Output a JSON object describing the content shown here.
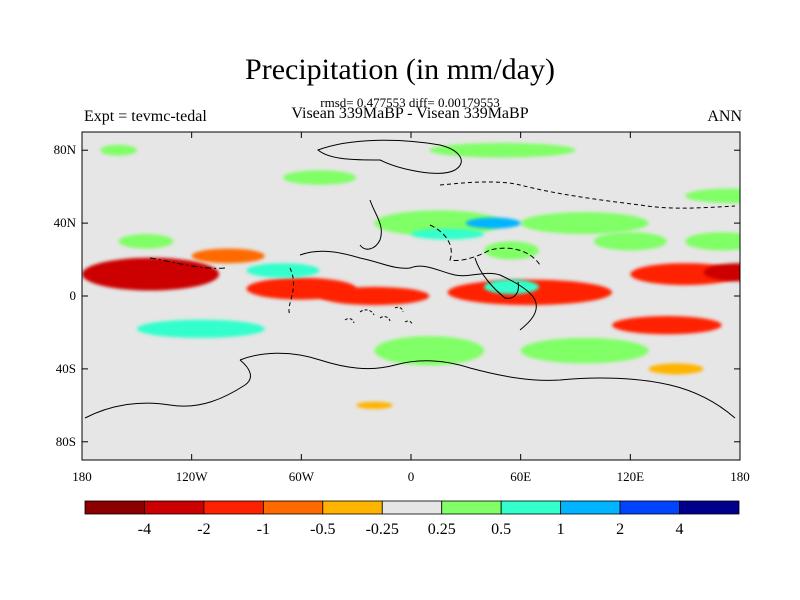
{
  "chart_data": {
    "type": "heatmap",
    "title": "Precipitation (in mm/day)",
    "stats_line": "rmsd= 0.477553 diff= 0.00179553",
    "left_label": "Expt = tevmc-tedal",
    "center_label": "Visean 339MaBP - Visean 339MaBP",
    "right_label": "ANN",
    "x_ticks": [
      {
        "value": -180,
        "label": "180"
      },
      {
        "value": -120,
        "label": "120W"
      },
      {
        "value": -60,
        "label": "60W"
      },
      {
        "value": 0,
        "label": "0"
      },
      {
        "value": 60,
        "label": "60E"
      },
      {
        "value": 120,
        "label": "120E"
      },
      {
        "value": 180,
        "label": "180"
      }
    ],
    "y_ticks": [
      {
        "value": 80,
        "label": "80N"
      },
      {
        "value": 40,
        "label": "40N"
      },
      {
        "value": 0,
        "label": "0"
      },
      {
        "value": -40,
        "label": "40S"
      },
      {
        "value": -80,
        "label": "80S"
      }
    ],
    "xlim": [
      -180,
      180
    ],
    "ylim": [
      -90,
      90
    ],
    "colorbar": {
      "colors": [
        "#8b0000",
        "#cc0000",
        "#ff2000",
        "#ff6a00",
        "#ffb400",
        "#e6e6e6",
        "#80ff66",
        "#33ffcc",
        "#00b4ff",
        "#0044ff",
        "#00008b"
      ],
      "labels": [
        "-4",
        "-2",
        "-1",
        "-0.5",
        "-0.25",
        "0.25",
        "0.5",
        "1",
        "2",
        "4"
      ]
    },
    "anomalies": [
      {
        "lon": -180,
        "lat": 12,
        "w": 75,
        "h": 18,
        "value": -2.2
      },
      {
        "lon": -90,
        "lat": 4,
        "w": 60,
        "h": 12,
        "value": -1.2
      },
      {
        "lon": -50,
        "lat": 0,
        "w": 60,
        "h": 10,
        "value": -1.4
      },
      {
        "lon": 20,
        "lat": 2,
        "w": 90,
        "h": 14,
        "value": -1.6
      },
      {
        "lon": 120,
        "lat": 12,
        "w": 60,
        "h": 12,
        "value": -1.8
      },
      {
        "lon": 160,
        "lat": 13,
        "w": 40,
        "h": 10,
        "value": -2.3
      },
      {
        "lon": 110,
        "lat": -16,
        "w": 60,
        "h": 10,
        "value": -1.1
      },
      {
        "lon": -120,
        "lat": 22,
        "w": 40,
        "h": 8,
        "value": -0.7
      },
      {
        "lon": 130,
        "lat": -40,
        "w": 30,
        "h": 6,
        "value": -0.4
      },
      {
        "lon": -30,
        "lat": -60,
        "w": 20,
        "h": 4,
        "value": -0.3
      },
      {
        "lon": 40,
        "lat": 5,
        "w": 30,
        "h": 8,
        "value": 0.6
      },
      {
        "lon": -90,
        "lat": 14,
        "w": 40,
        "h": 8,
        "value": 0.6
      },
      {
        "lon": -150,
        "lat": -18,
        "w": 70,
        "h": 10,
        "value": 0.6
      },
      {
        "lon": -20,
        "lat": -30,
        "w": 60,
        "h": 16,
        "value": 0.4
      },
      {
        "lon": -20,
        "lat": 40,
        "w": 70,
        "h": 14,
        "value": 0.4
      },
      {
        "lon": 60,
        "lat": 40,
        "w": 70,
        "h": 12,
        "value": 0.35
      },
      {
        "lon": 0,
        "lat": 34,
        "w": 40,
        "h": 6,
        "value": 0.7
      },
      {
        "lon": 40,
        "lat": 25,
        "w": 30,
        "h": 10,
        "value": 0.4
      },
      {
        "lon": 100,
        "lat": 30,
        "w": 40,
        "h": 10,
        "value": 0.4
      },
      {
        "lon": 150,
        "lat": 30,
        "w": 40,
        "h": 10,
        "value": 0.35
      },
      {
        "lon": 10,
        "lat": 80,
        "w": 80,
        "h": 8,
        "value": 0.35
      },
      {
        "lon": -170,
        "lat": 80,
        "w": 20,
        "h": 6,
        "value": 0.3
      },
      {
        "lon": 60,
        "lat": -30,
        "w": 70,
        "h": 14,
        "value": 0.35
      },
      {
        "lon": 150,
        "lat": 55,
        "w": 50,
        "h": 8,
        "value": 0.3
      },
      {
        "lon": -70,
        "lat": 65,
        "w": 40,
        "h": 8,
        "value": 0.3
      },
      {
        "lon": -160,
        "lat": 30,
        "w": 30,
        "h": 8,
        "value": 0.3
      },
      {
        "lon": 30,
        "lat": 40,
        "w": 30,
        "h": 6,
        "value": 1.3
      }
    ]
  }
}
